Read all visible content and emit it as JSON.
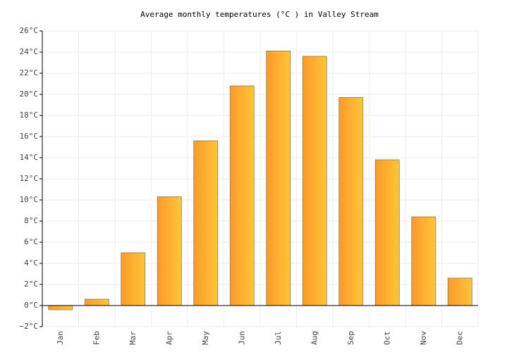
{
  "chart_data": {
    "type": "bar",
    "title": "Average monthly temperatures (°C ) in Valley Stream",
    "categories": [
      "Jan",
      "Feb",
      "Mar",
      "Apr",
      "May",
      "Jun",
      "Jul",
      "Aug",
      "Sep",
      "Oct",
      "Nov",
      "Dec"
    ],
    "values": [
      -0.4,
      0.6,
      5.0,
      10.3,
      15.6,
      20.8,
      24.1,
      23.6,
      19.7,
      13.8,
      8.4,
      2.6
    ],
    "color": "#fdae30",
    "ylim": [
      -2,
      26
    ],
    "yticks": [
      {
        "value": -2,
        "label": "−2°C"
      },
      {
        "value": 0,
        "label": "0°C"
      },
      {
        "value": 2,
        "label": "2°C"
      },
      {
        "value": 4,
        "label": "4°C"
      },
      {
        "value": 6,
        "label": "6°C"
      },
      {
        "value": 8,
        "label": "8°C"
      },
      {
        "value": 10,
        "label": "10°C"
      },
      {
        "value": 12,
        "label": "12°C"
      },
      {
        "value": 14,
        "label": "14°C"
      },
      {
        "value": 16,
        "label": "16°C"
      },
      {
        "value": 18,
        "label": "18°C"
      },
      {
        "value": 20,
        "label": "20°C"
      },
      {
        "value": 22,
        "label": "22°C"
      },
      {
        "value": 24,
        "label": "24°C"
      },
      {
        "value": 26,
        "label": "26°C"
      }
    ],
    "grid": true
  }
}
